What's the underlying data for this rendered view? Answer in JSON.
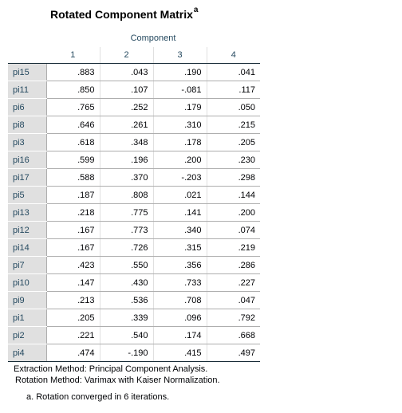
{
  "title": "Rotated Component Matrix",
  "title_superscript": "a",
  "component_header": "Component",
  "columns": [
    "1",
    "2",
    "3",
    "4"
  ],
  "rows": [
    {
      "label": "pi15",
      "values": [
        ".883",
        ".043",
        ".190",
        ".041"
      ]
    },
    {
      "label": "pi11",
      "values": [
        ".850",
        ".107",
        "-.081",
        ".117"
      ]
    },
    {
      "label": "pi6",
      "values": [
        ".765",
        ".252",
        ".179",
        ".050"
      ]
    },
    {
      "label": "pi8",
      "values": [
        ".646",
        ".261",
        ".310",
        ".215"
      ]
    },
    {
      "label": "pi3",
      "values": [
        ".618",
        ".348",
        ".178",
        ".205"
      ]
    },
    {
      "label": "pi16",
      "values": [
        ".599",
        ".196",
        ".200",
        ".230"
      ]
    },
    {
      "label": "pi17",
      "values": [
        ".588",
        ".370",
        "-.203",
        ".298"
      ]
    },
    {
      "label": "pi5",
      "values": [
        ".187",
        ".808",
        ".021",
        ".144"
      ]
    },
    {
      "label": "pi13",
      "values": [
        ".218",
        ".775",
        ".141",
        ".200"
      ]
    },
    {
      "label": "pi12",
      "values": [
        ".167",
        ".773",
        ".340",
        ".074"
      ]
    },
    {
      "label": "pi14",
      "values": [
        ".167",
        ".726",
        ".315",
        ".219"
      ]
    },
    {
      "label": "pi7",
      "values": [
        ".423",
        ".550",
        ".356",
        ".286"
      ]
    },
    {
      "label": "pi10",
      "values": [
        ".147",
        ".430",
        ".733",
        ".227"
      ]
    },
    {
      "label": "pi9",
      "values": [
        ".213",
        ".536",
        ".708",
        ".047"
      ]
    },
    {
      "label": "pi1",
      "values": [
        ".205",
        ".339",
        ".096",
        ".792"
      ]
    },
    {
      "label": "pi2",
      "values": [
        ".221",
        ".540",
        ".174",
        ".668"
      ]
    },
    {
      "label": "pi4",
      "values": [
        ".474",
        "-.190",
        ".415",
        ".497"
      ]
    }
  ],
  "footnotes": {
    "extraction": "Extraction Method: Principal Component Analysis.",
    "rotation": "Rotation Method: Varimax with Kaiser Normalization.",
    "converged": "a. Rotation converged in 6 iterations."
  }
}
